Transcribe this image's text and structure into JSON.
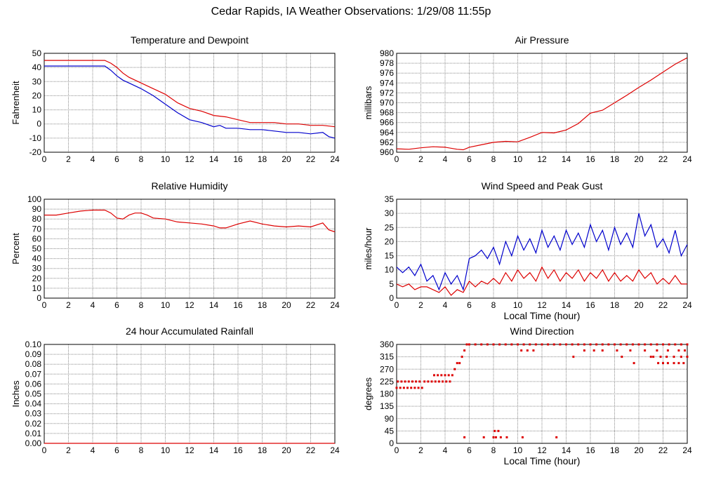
{
  "page": {
    "title": "Cedar Rapids, IA Weather Observations: 1/29/08 11:55p"
  },
  "colors": {
    "red": "#dd0000",
    "blue": "#0000cc",
    "grid": "#8c8c8c"
  },
  "chart_data": [
    {
      "id": "temp",
      "type": "line",
      "title": "Temperature and Dewpoint",
      "xlabel": "",
      "ylabel": "Fahrenheit",
      "xlim": [
        0,
        24
      ],
      "ylim": [
        -20,
        50
      ],
      "xticks": [
        0,
        2,
        4,
        6,
        8,
        10,
        12,
        14,
        16,
        18,
        20,
        22,
        24
      ],
      "yticks": [
        -20,
        -10,
        0,
        10,
        20,
        30,
        40,
        50
      ],
      "grid": true,
      "series": [
        {
          "color": "red",
          "x": [
            0,
            1,
            2,
            3,
            4,
            5,
            5.5,
            6,
            6.5,
            7,
            8,
            9,
            10,
            11,
            12,
            13,
            14,
            15,
            16,
            17,
            18,
            19,
            20,
            21,
            22,
            23,
            24
          ],
          "y": [
            45,
            45,
            45,
            45,
            45,
            45,
            43,
            40,
            36,
            33,
            29,
            25,
            21,
            15,
            11,
            9,
            6,
            5,
            3,
            1,
            1,
            1,
            0,
            0,
            -1,
            -1,
            -2
          ]
        },
        {
          "color": "blue",
          "x": [
            0,
            1,
            2,
            3,
            4,
            5,
            5.5,
            6,
            6.5,
            7,
            8,
            9,
            10,
            11,
            12,
            13,
            14,
            14.5,
            15,
            16,
            17,
            18,
            19,
            20,
            21,
            22,
            23,
            23.5,
            24
          ],
          "y": [
            41,
            41,
            41,
            41,
            41,
            41,
            38,
            34,
            31,
            29,
            25,
            20,
            14,
            8,
            3,
            1,
            -2,
            -1,
            -3,
            -3,
            -4,
            -4,
            -5,
            -6,
            -6,
            -7,
            -6,
            -9,
            -10
          ]
        }
      ]
    },
    {
      "id": "pressure",
      "type": "line",
      "title": "Air Pressure",
      "xlabel": "",
      "ylabel": "millibars",
      "xlim": [
        0,
        24
      ],
      "ylim": [
        960,
        980
      ],
      "xticks": [
        0,
        2,
        4,
        6,
        8,
        10,
        12,
        14,
        16,
        18,
        20,
        22,
        24
      ],
      "yticks": [
        960,
        962,
        964,
        966,
        968,
        970,
        972,
        974,
        976,
        978,
        980
      ],
      "grid": true,
      "series": [
        {
          "color": "red",
          "x": [
            0,
            1,
            2,
            3,
            4,
            5,
            5.5,
            6,
            7,
            8,
            9,
            10,
            11,
            12,
            13,
            14,
            15,
            16,
            17,
            18,
            19,
            20,
            21,
            22,
            23,
            24
          ],
          "y": [
            960.7,
            960.6,
            960.9,
            961.1,
            961.0,
            960.6,
            960.5,
            961.0,
            961.5,
            962.0,
            962.2,
            962.1,
            963.0,
            964.0,
            963.9,
            964.5,
            965.8,
            967.9,
            968.5,
            970.0,
            971.5,
            973.1,
            974.6,
            976.2,
            977.8,
            979.1
          ]
        }
      ]
    },
    {
      "id": "humidity",
      "type": "line",
      "title": "Relative Humidity",
      "xlabel": "",
      "ylabel": "Percent",
      "xlim": [
        0,
        24
      ],
      "ylim": [
        0,
        100
      ],
      "xticks": [
        0,
        2,
        4,
        6,
        8,
        10,
        12,
        14,
        16,
        18,
        20,
        22,
        24
      ],
      "yticks": [
        0,
        10,
        20,
        30,
        40,
        50,
        60,
        70,
        80,
        90,
        100
      ],
      "grid": true,
      "series": [
        {
          "color": "red",
          "x": [
            0,
            1,
            2,
            3,
            4,
            5,
            5.5,
            6,
            6.5,
            7,
            7.5,
            8,
            8.5,
            9,
            10,
            11,
            12,
            13,
            14,
            14.5,
            15,
            16,
            17,
            18,
            19,
            20,
            21,
            22,
            23,
            23.5,
            24
          ],
          "y": [
            84,
            84,
            86,
            88,
            89,
            89,
            86,
            81,
            80,
            84,
            86,
            86,
            84,
            81,
            80,
            77,
            76,
            75,
            73,
            71,
            71,
            75,
            78,
            75,
            73,
            72,
            73,
            72,
            76,
            69,
            67
          ]
        }
      ]
    },
    {
      "id": "wind",
      "type": "line",
      "title": "Wind Speed and Peak Gust",
      "xlabel": "Local Time (hour)",
      "ylabel": "miles/hour",
      "xlim": [
        0,
        24
      ],
      "ylim": [
        0,
        35
      ],
      "xticks": [
        0,
        2,
        4,
        6,
        8,
        10,
        12,
        14,
        16,
        18,
        20,
        22,
        24
      ],
      "yticks": [
        0,
        5,
        10,
        15,
        20,
        25,
        30,
        35
      ],
      "grid": true,
      "series": [
        {
          "color": "blue",
          "x": [
            0,
            0.5,
            1,
            1.5,
            2,
            2.5,
            3,
            3.5,
            4,
            4.5,
            5,
            5.5,
            6,
            6.5,
            7,
            7.5,
            8,
            8.5,
            9,
            9.5,
            10,
            10.5,
            11,
            11.5,
            12,
            12.5,
            13,
            13.5,
            14,
            14.5,
            15,
            15.5,
            16,
            16.5,
            17,
            17.5,
            18,
            18.5,
            19,
            19.5,
            20,
            20.5,
            21,
            21.5,
            22,
            22.5,
            23,
            23.5,
            24
          ],
          "y": [
            11,
            9,
            11,
            8,
            12,
            6,
            8,
            3,
            9,
            5,
            8,
            3,
            14,
            15,
            17,
            14,
            18,
            12,
            20,
            15,
            22,
            17,
            21,
            16,
            24,
            18,
            22,
            17,
            24,
            19,
            23,
            18,
            26,
            20,
            24,
            17,
            25,
            19,
            23,
            18,
            30,
            22,
            26,
            18,
            21,
            16,
            24,
            15,
            19
          ]
        },
        {
          "color": "red",
          "x": [
            0,
            0.5,
            1,
            1.5,
            2,
            2.5,
            3,
            3.5,
            4,
            4.5,
            5,
            5.5,
            6,
            6.5,
            7,
            7.5,
            8,
            8.5,
            9,
            9.5,
            10,
            10.5,
            11,
            11.5,
            12,
            12.5,
            13,
            13.5,
            14,
            14.5,
            15,
            15.5,
            16,
            16.5,
            17,
            17.5,
            18,
            18.5,
            19,
            19.5,
            20,
            20.5,
            21,
            21.5,
            22,
            22.5,
            23,
            23.5,
            24
          ],
          "y": [
            5,
            4,
            5,
            3,
            4,
            4,
            3,
            2,
            4,
            1,
            3,
            2,
            6,
            4,
            6,
            5,
            7,
            5,
            9,
            6,
            10,
            7,
            9,
            6,
            11,
            7,
            10,
            6,
            9,
            7,
            10,
            6,
            9,
            7,
            10,
            6,
            9,
            6,
            8,
            6,
            10,
            7,
            9,
            5,
            7,
            5,
            8,
            5,
            5
          ]
        }
      ]
    },
    {
      "id": "rain",
      "type": "line",
      "title": "24 hour Accumulated Rainfall",
      "xlabel": "",
      "ylabel": "Inches",
      "xlim": [
        0,
        24
      ],
      "ylim": [
        0,
        0.1
      ],
      "xticks": [
        0,
        2,
        4,
        6,
        8,
        10,
        12,
        14,
        16,
        18,
        20,
        22,
        24
      ],
      "yticks": [
        "0.00",
        "0.01",
        "0.02",
        "0.03",
        "0.04",
        "0.05",
        "0.06",
        "0.07",
        "0.08",
        "0.09",
        "0.10"
      ],
      "grid": true,
      "series": [
        {
          "color": "red",
          "x": [
            0,
            24
          ],
          "y": [
            0,
            0
          ]
        }
      ]
    },
    {
      "id": "winddir",
      "type": "scatter",
      "title": "Wind Direction",
      "xlabel": "Local Time (hour)",
      "ylabel": "degrees",
      "xlim": [
        0,
        24
      ],
      "ylim": [
        0,
        360
      ],
      "xticks": [
        0,
        2,
        4,
        6,
        8,
        10,
        12,
        14,
        16,
        18,
        20,
        22,
        24
      ],
      "yticks": [
        0,
        45,
        90,
        135,
        180,
        225,
        270,
        315,
        360
      ],
      "grid": true,
      "series": [
        {
          "color": "red",
          "x": [
            0,
            0.3,
            0.6,
            0.9,
            1.2,
            1.5,
            1.8,
            2.1,
            0.1,
            0.4,
            0.7,
            1.0,
            1.3,
            1.6,
            1.9,
            2.3,
            2.6,
            2.9,
            3.2,
            3.5,
            3.8,
            4.1,
            4.4,
            3.1,
            3.4,
            3.7,
            4.0,
            4.3,
            4.6,
            4.8,
            5.0,
            5.2,
            5.4,
            5.6,
            5.8,
            6.0,
            6.5,
            7.0,
            7.5,
            8.0,
            8.5,
            9.0,
            9.5,
            10.0,
            10.5,
            11.0,
            11.5,
            12.0,
            12.5,
            13.0,
            13.5,
            14.0,
            14.5,
            15.0,
            15.5,
            16.0,
            16.5,
            17.0,
            17.5,
            18.0,
            18.5,
            19.0,
            19.5,
            20.0,
            20.5,
            21.0,
            21.5,
            22.0,
            22.5,
            23.0,
            23.5,
            24.0,
            10.3,
            10.8,
            11.3,
            14.6,
            15.5,
            16.3,
            17.0,
            18.2,
            19.3,
            20.5,
            21.5,
            22.4,
            23.3,
            23.8,
            21.2,
            21.8,
            22.3,
            22.9,
            23.5,
            24.0,
            18.6,
            19.6,
            21.0,
            21.6,
            22.0,
            22.4,
            22.9,
            23.3,
            23.7,
            5.6,
            7.2,
            8.0,
            8.1,
            8.4,
            8.6,
            9.1,
            10.4,
            13.2,
            8.2
          ],
          "y": [
            202,
            202,
            202,
            202,
            202,
            202,
            202,
            202,
            225,
            225,
            225,
            225,
            225,
            225,
            225,
            225,
            225,
            225,
            225,
            225,
            225,
            225,
            225,
            248,
            248,
            248,
            248,
            248,
            248,
            270,
            292,
            292,
            315,
            338,
            360,
            360,
            360,
            360,
            360,
            360,
            360,
            360,
            360,
            360,
            360,
            360,
            360,
            360,
            360,
            360,
            360,
            360,
            360,
            360,
            360,
            360,
            360,
            360,
            360,
            360,
            360,
            360,
            360,
            360,
            360,
            360,
            360,
            360,
            360,
            360,
            360,
            360,
            338,
            338,
            338,
            315,
            338,
            338,
            338,
            338,
            338,
            338,
            338,
            338,
            338,
            338,
            315,
            315,
            315,
            315,
            315,
            315,
            315,
            292,
            315,
            292,
            292,
            292,
            292,
            292,
            292,
            22,
            22,
            22,
            45,
            45,
            22,
            22,
            22,
            22,
            22
          ]
        }
      ]
    }
  ]
}
